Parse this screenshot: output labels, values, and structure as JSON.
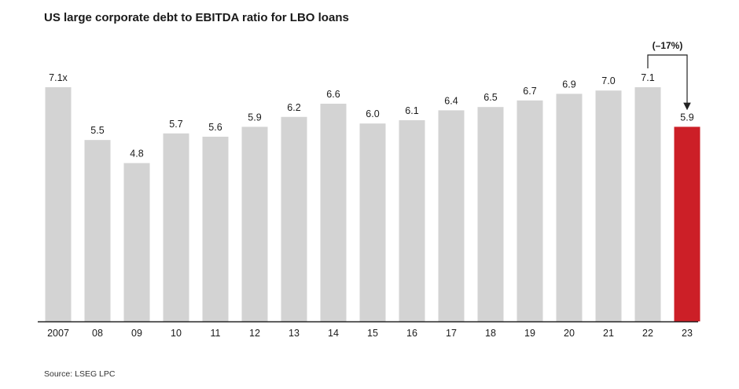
{
  "title": "US large corporate debt to EBITDA ratio for LBO loans",
  "source": "Source: LSEG LPC",
  "colors": {
    "bar": "#d3d3d3",
    "highlight": "#cc1f27",
    "axis": "#222222"
  },
  "chart_data": {
    "type": "bar",
    "title": "US large corporate debt to EBITDA ratio for LBO loans",
    "categories": [
      "2007",
      "08",
      "09",
      "10",
      "11",
      "12",
      "13",
      "14",
      "15",
      "16",
      "17",
      "18",
      "19",
      "20",
      "21",
      "22",
      "23"
    ],
    "values": [
      7.1,
      5.5,
      4.8,
      5.7,
      5.6,
      5.9,
      6.2,
      6.6,
      6.0,
      6.1,
      6.4,
      6.5,
      6.7,
      6.9,
      7.0,
      7.1,
      5.9
    ],
    "value_labels": [
      "7.1x",
      "5.5",
      "4.8",
      "5.7",
      "5.6",
      "5.9",
      "6.2",
      "6.6",
      "6.0",
      "6.1",
      "6.4",
      "6.5",
      "6.7",
      "6.9",
      "7.0",
      "7.1",
      "5.9"
    ],
    "highlight_index": 16,
    "annotation": {
      "text": "(–17%)",
      "from": "22",
      "to": "23"
    },
    "xlabel": "",
    "ylabel": "",
    "ylim": [
      0,
      7.1
    ],
    "grid": false,
    "legend": "none"
  }
}
